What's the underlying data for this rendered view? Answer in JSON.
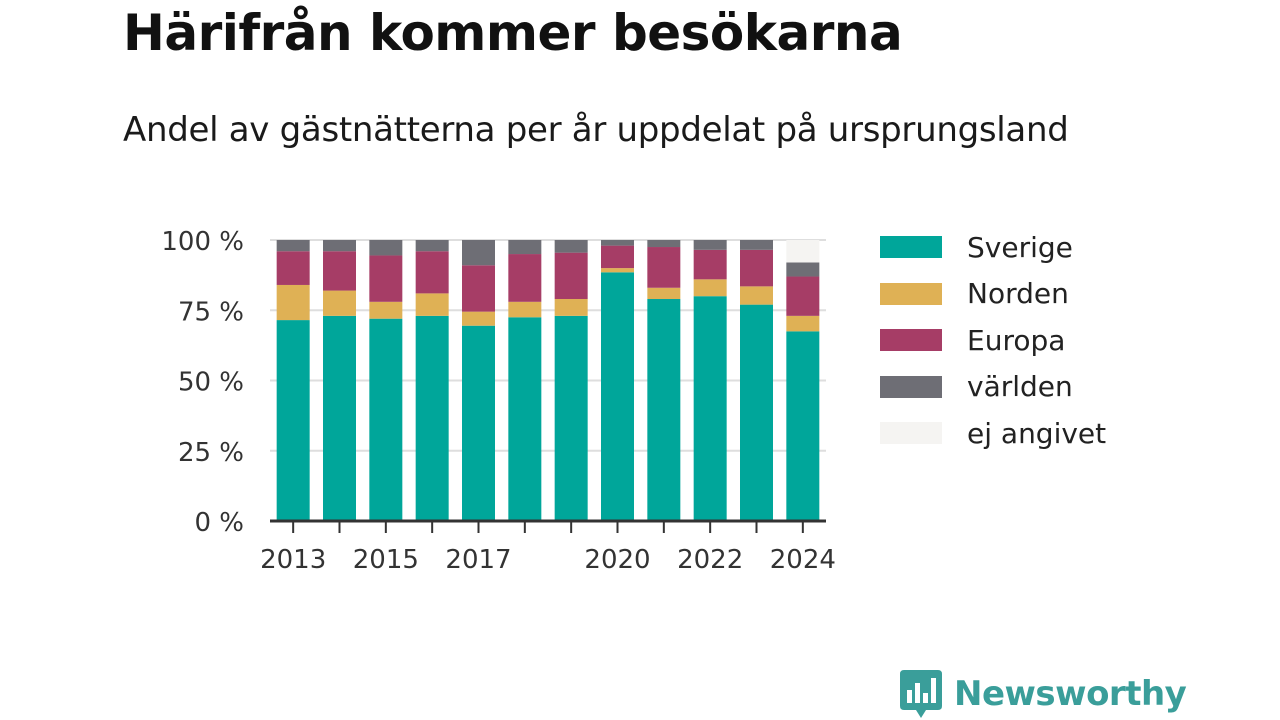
{
  "header": {
    "title": "Härifrån kommer besökarna",
    "subtitle": "Andel av gästnätterna per år uppdelat på ursprungsland"
  },
  "brand": {
    "name": "Newsworthy",
    "color": "#3a9e9a"
  },
  "chart_data": {
    "type": "bar",
    "stacked": true,
    "categories": [
      "2013",
      "2014",
      "2015",
      "2016",
      "2017",
      "2018",
      "2019",
      "2020",
      "2021",
      "2022",
      "2023",
      "2024"
    ],
    "x_tick_labels": [
      "2013",
      "",
      "2015",
      "",
      "2017",
      "",
      "",
      "2020",
      "",
      "2022",
      "",
      "2024"
    ],
    "y_tick_labels": [
      "0 %",
      "25 %",
      "50 %",
      "75 %",
      "100 %"
    ],
    "y_ticks": [
      0,
      25,
      50,
      75,
      100
    ],
    "ylim": [
      0,
      100
    ],
    "grid": true,
    "legend_position": "right",
    "series": [
      {
        "name": "Sverige",
        "color": "#00a69a",
        "values": [
          71.5,
          73,
          72,
          73,
          69.5,
          72.5,
          73,
          88.5,
          79,
          80,
          77,
          67.5
        ]
      },
      {
        "name": "Norden",
        "color": "#dfb155",
        "values": [
          12.5,
          9,
          6,
          8,
          5,
          5.5,
          6,
          1.5,
          4,
          6,
          6.5,
          5.5
        ]
      },
      {
        "name": "Europa",
        "color": "#a63d66",
        "values": [
          12,
          14,
          16.5,
          15,
          16.5,
          17,
          16.5,
          8,
          14.5,
          10.5,
          13,
          14
        ]
      },
      {
        "name": "världen",
        "color": "#6e6e75",
        "values": [
          4,
          4,
          5.5,
          4,
          9,
          5,
          4.5,
          2,
          2.5,
          3.5,
          3.5,
          5
        ]
      },
      {
        "name": "ej angivet",
        "color": "#f5f4f2",
        "values": [
          0,
          0,
          0,
          0,
          0,
          0,
          0,
          0,
          0,
          0,
          0,
          8
        ]
      }
    ]
  }
}
